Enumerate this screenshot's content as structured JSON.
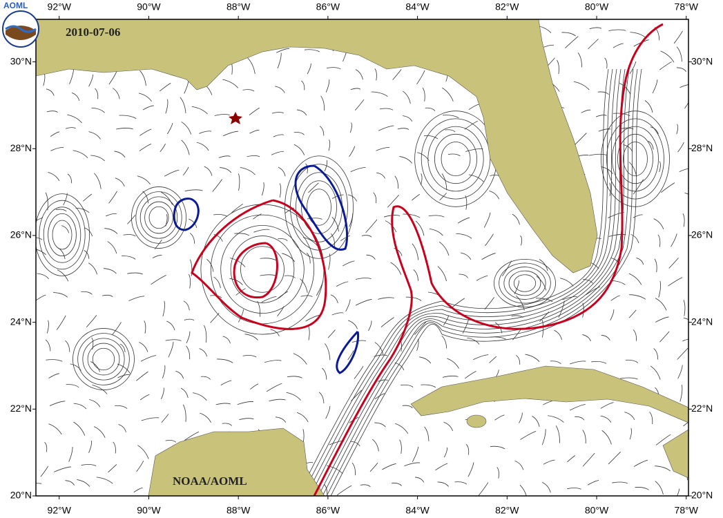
{
  "logo_text": "AOML",
  "date": "2010-07-06",
  "credit": "NOAA/AOML",
  "lon_ticks": [
    {
      "value": -92,
      "label": "92°W"
    },
    {
      "value": -90,
      "label": "90°W"
    },
    {
      "value": -88,
      "label": "88°W"
    },
    {
      "value": -86,
      "label": "86°W"
    },
    {
      "value": -84,
      "label": "84°W"
    },
    {
      "value": -82,
      "label": "82°W"
    },
    {
      "value": -80,
      "label": "80°W"
    },
    {
      "value": -78,
      "label": "78°W"
    }
  ],
  "lat_ticks": [
    {
      "value": 20,
      "label": "20°N"
    },
    {
      "value": 22,
      "label": "22°N"
    },
    {
      "value": 24,
      "label": "24°N"
    },
    {
      "value": 26,
      "label": "26°N"
    },
    {
      "value": 28,
      "label": "28°N"
    },
    {
      "value": 30,
      "label": "30°N"
    }
  ],
  "lon_range": [
    -92.52,
    -77.95
  ],
  "lat_range": [
    20,
    30.98
  ]
}
